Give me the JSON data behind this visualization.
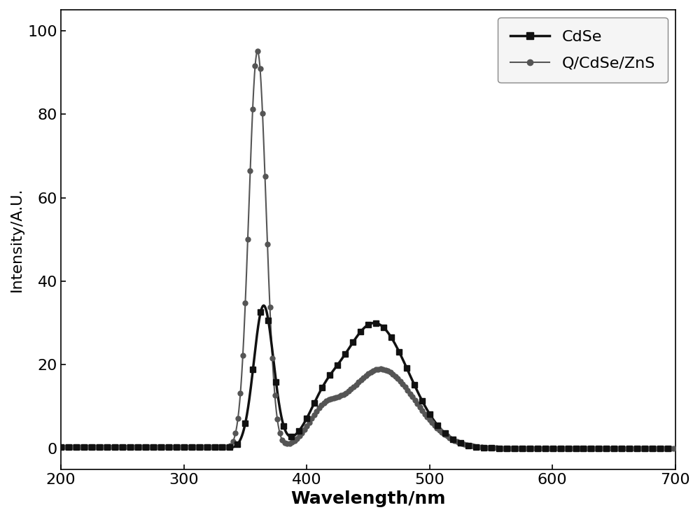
{
  "title": "",
  "xlabel": "Wavelength/nm",
  "ylabel": "Intensity/A.U.",
  "xlim": [
    200,
    700
  ],
  "ylim": [
    -5,
    105
  ],
  "xticks": [
    200,
    300,
    400,
    500,
    600,
    700
  ],
  "yticks": [
    0,
    20,
    40,
    60,
    80,
    100
  ],
  "background_color": "#ffffff",
  "cdse_color": "#111111",
  "qcdse_color": "#555555",
  "legend_entries": [
    "CdSe",
    "Q/CdSe/ZnS"
  ],
  "xlabel_fontsize": 18,
  "ylabel_fontsize": 16,
  "tick_fontsize": 16,
  "legend_fontsize": 16,
  "linewidth_cdse": 2.5,
  "linewidth_qcdse": 1.5
}
